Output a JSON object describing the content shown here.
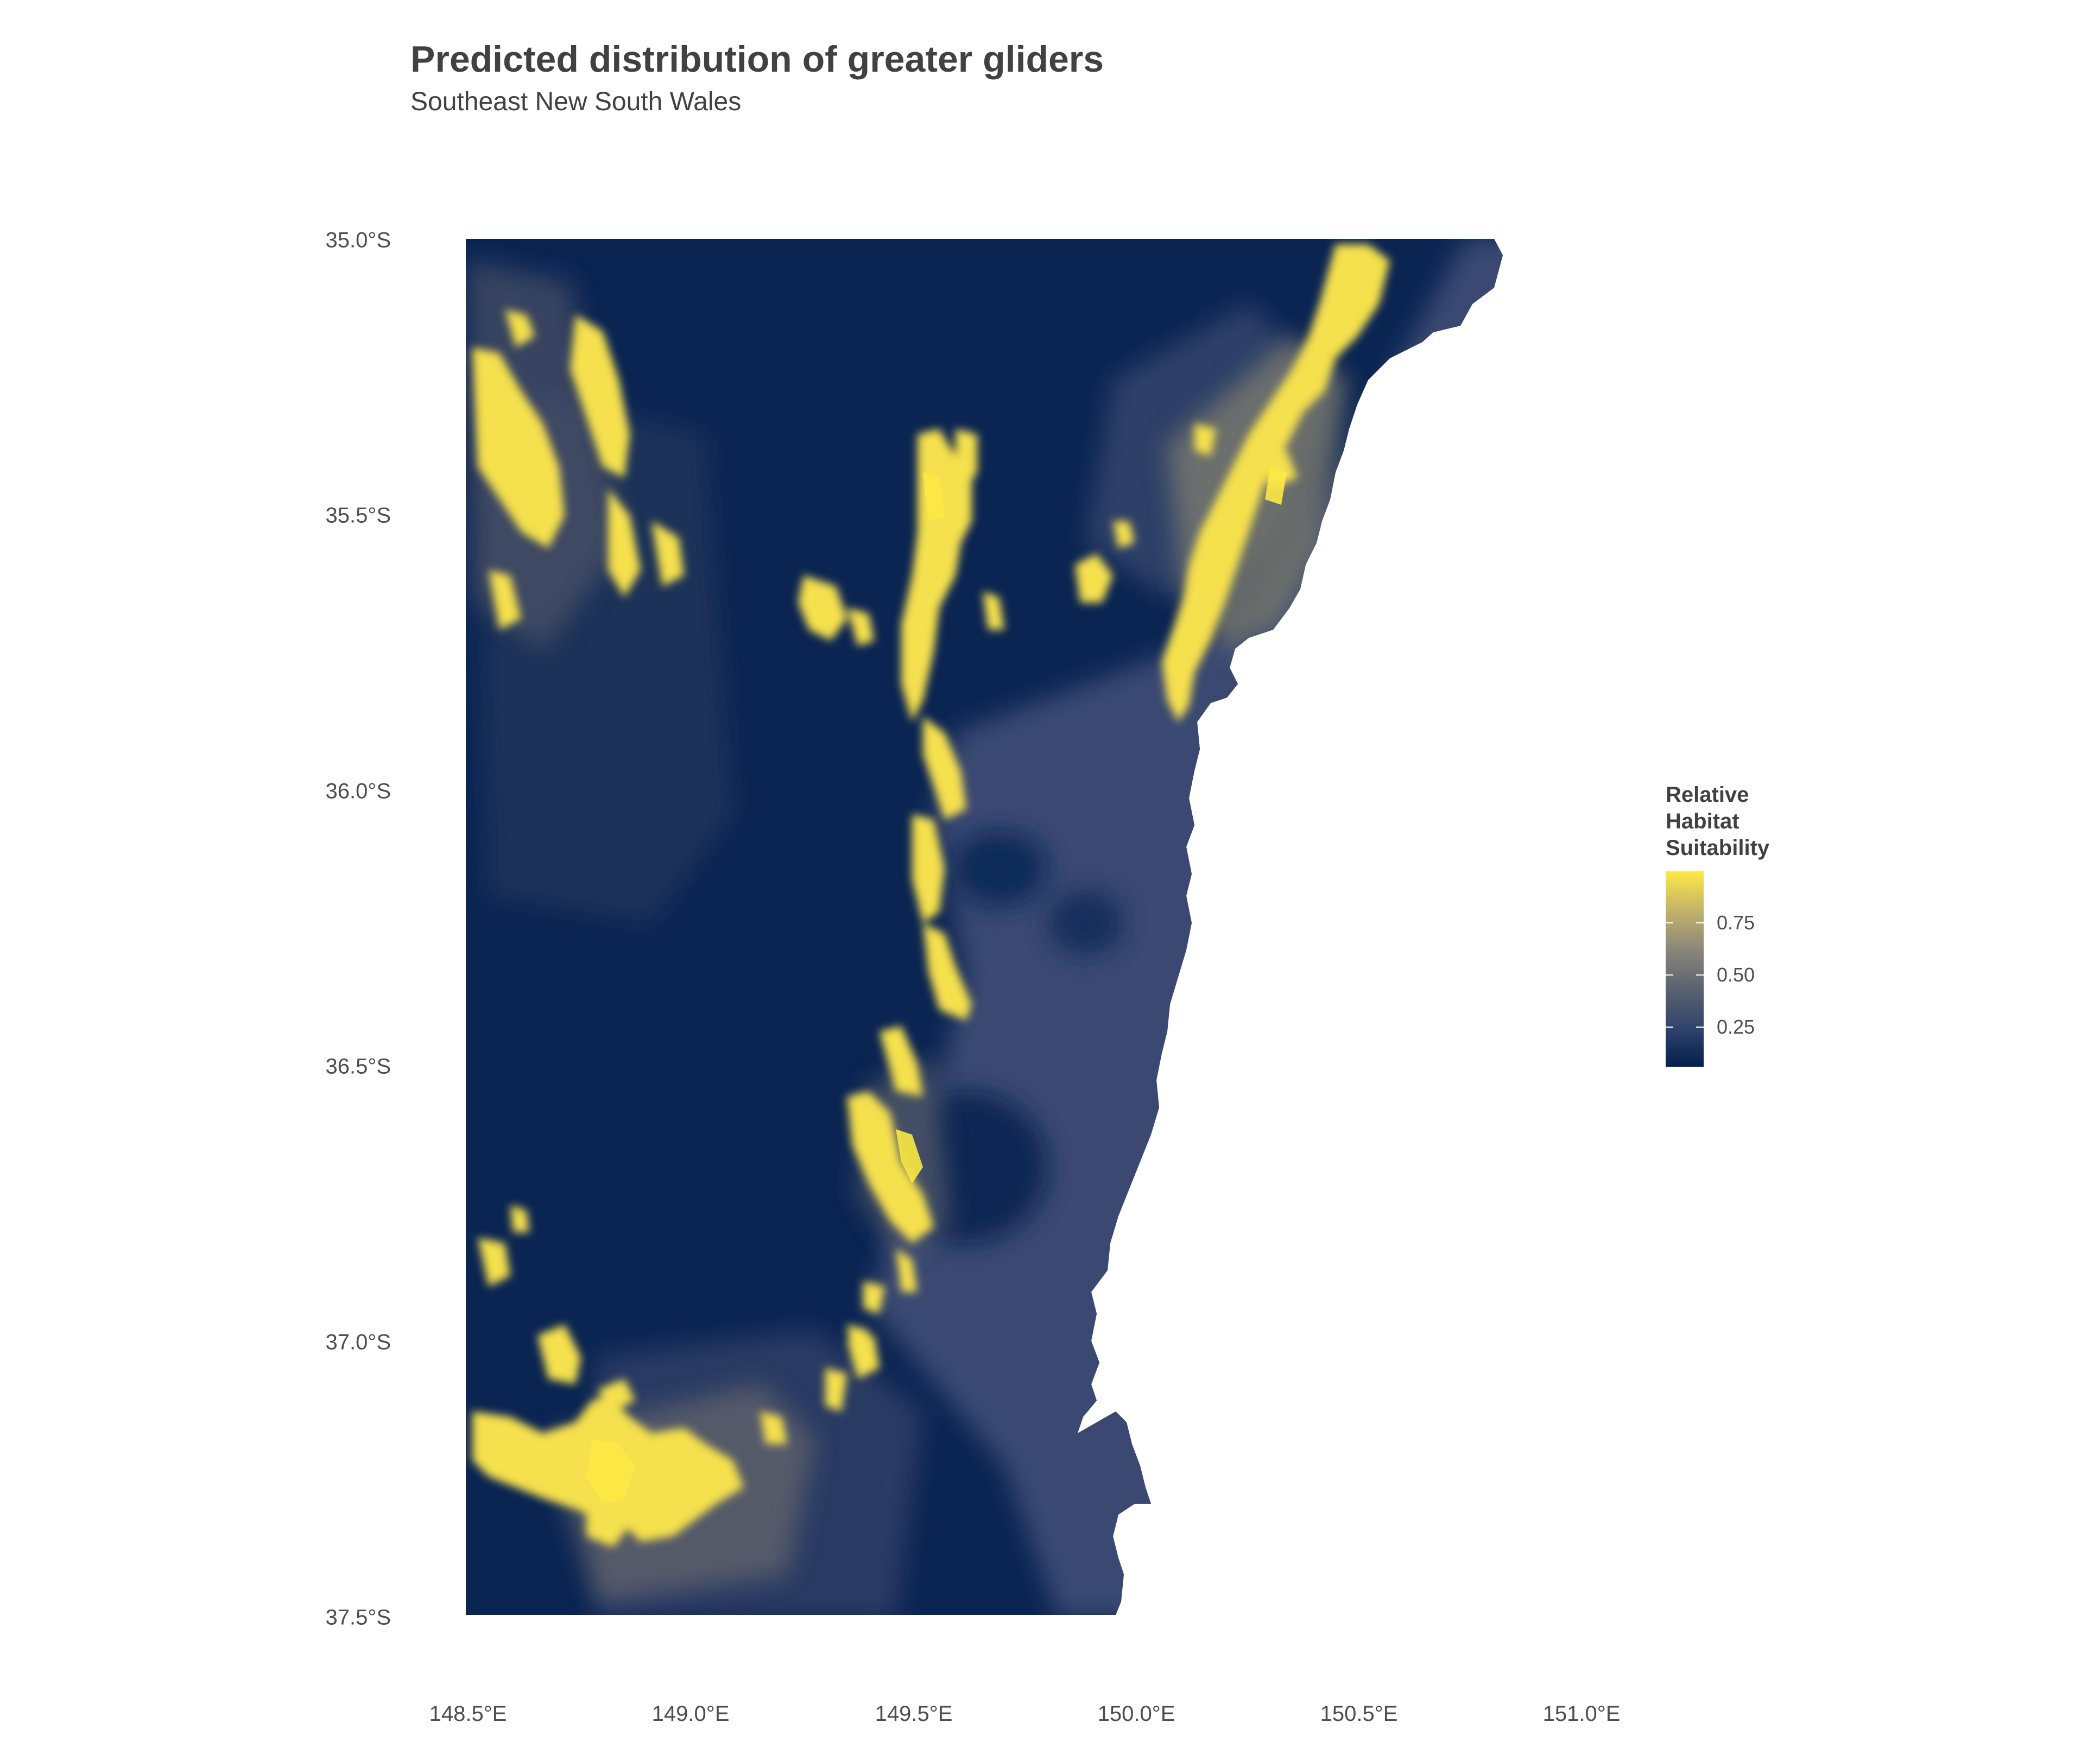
{
  "map": {
    "title": "Predicted distribution of greater gliders",
    "subtitle": "Southeast New South Wales",
    "latitude_labels": [
      "35.0°S",
      "35.5°S",
      "36.0°S",
      "36.5°S",
      "37.0°S",
      "37.5°S"
    ],
    "longitude_labels": [
      "148.5°E",
      "149.0°E",
      "149.5°E",
      "150.0°E",
      "150.5°E",
      "151.0°E"
    ],
    "latitude_range": [
      -37.5,
      -35.0
    ],
    "longitude_range": [
      148.5,
      151.0
    ],
    "colors": {
      "low": "#00204d",
      "mid": "#7c7b78",
      "high": "#fde945",
      "background": "#ffffff"
    }
  },
  "legend": {
    "title": "Relative\nHabitat\nSuitability",
    "tick_labels": [
      "0.75",
      "0.50",
      "0.25"
    ],
    "tick_values": [
      0.75,
      0.5,
      0.25
    ]
  }
}
